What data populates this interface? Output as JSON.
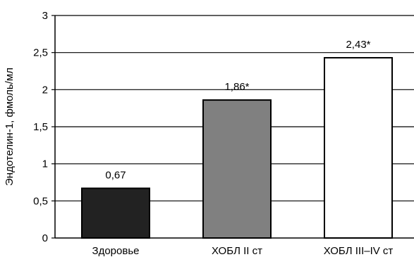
{
  "chart_data": {
    "type": "bar",
    "categories": [
      "Здоровье",
      "ХОБЛ II ст",
      "ХОБЛ III–IV ст"
    ],
    "values": [
      0.67,
      1.86,
      2.43
    ],
    "data_labels": [
      "0,67",
      "1,86*",
      "2,43*"
    ],
    "bar_colors": [
      "#222222",
      "#808080",
      "#ffffff"
    ],
    "ylabel": "Эндотелин-1, фмоль/мл",
    "xlabel": "",
    "ylim": [
      0,
      3
    ],
    "yticks": [
      0,
      0.5,
      1,
      1.5,
      2,
      2.5,
      3
    ],
    "ytick_labels": [
      "0",
      "0,5",
      "1",
      "1,5",
      "2",
      "2,5",
      "3"
    ],
    "grid": true
  }
}
